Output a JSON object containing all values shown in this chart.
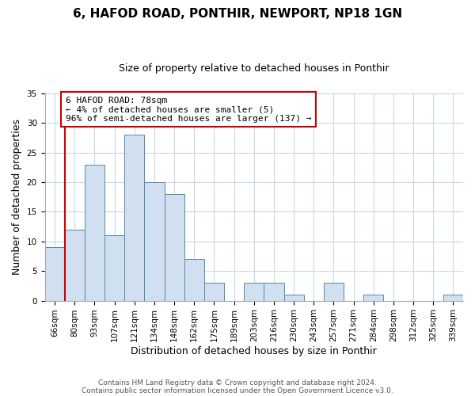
{
  "title": "6, HAFOD ROAD, PONTHIR, NEWPORT, NP18 1GN",
  "subtitle": "Size of property relative to detached houses in Ponthir",
  "xlabel": "Distribution of detached houses by size in Ponthir",
  "ylabel": "Number of detached properties",
  "bar_labels": [
    "66sqm",
    "80sqm",
    "93sqm",
    "107sqm",
    "121sqm",
    "134sqm",
    "148sqm",
    "162sqm",
    "175sqm",
    "189sqm",
    "203sqm",
    "216sqm",
    "230sqm",
    "243sqm",
    "257sqm",
    "271sqm",
    "284sqm",
    "298sqm",
    "312sqm",
    "325sqm",
    "339sqm"
  ],
  "bar_values": [
    9,
    12,
    23,
    11,
    28,
    20,
    18,
    7,
    3,
    0,
    3,
    3,
    1,
    0,
    3,
    0,
    1,
    0,
    0,
    0,
    1
  ],
  "bar_color": "#d0e0f0",
  "bar_edge_color": "#5588aa",
  "annotation_text_line1": "6 HAFOD ROAD: 78sqm",
  "annotation_text_line2": "← 4% of detached houses are smaller (5)",
  "annotation_text_line3": "96% of semi-detached houses are larger (137) →",
  "annotation_box_color": "#ffffff",
  "annotation_box_edge_color": "#cc0000",
  "red_line_color": "#cc0000",
  "ylim": [
    0,
    35
  ],
  "yticks": [
    0,
    5,
    10,
    15,
    20,
    25,
    30,
    35
  ],
  "footer_line1": "Contains HM Land Registry data © Crown copyright and database right 2024.",
  "footer_line2": "Contains public sector information licensed under the Open Government Licence v3.0.",
  "background_color": "#ffffff",
  "grid_color": "#c8d8e8",
  "title_fontsize": 11,
  "subtitle_fontsize": 9,
  "axis_label_fontsize": 9,
  "tick_fontsize": 7.5,
  "annotation_fontsize": 8,
  "footer_fontsize": 6.5
}
